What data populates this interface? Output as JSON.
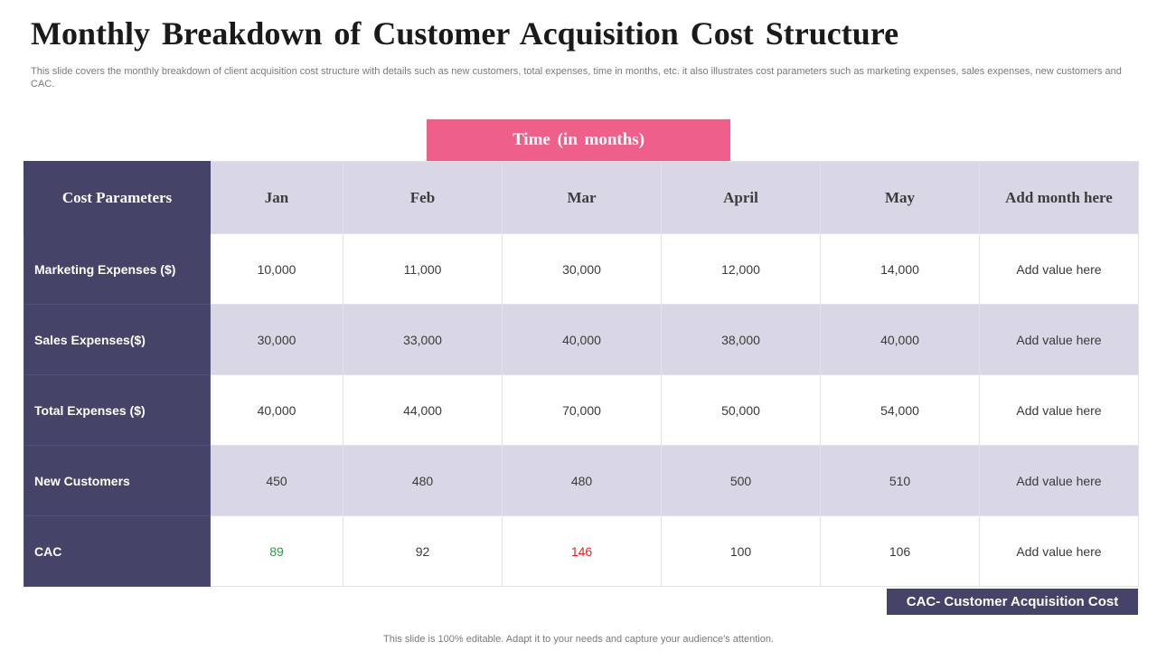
{
  "slide": {
    "title": "Monthly Breakdown  of Customer Acquisition Cost Structure",
    "subtitle": "This slide covers the monthly breakdown of client acquisition cost structure with details such as new customers, total expenses, time in months, etc. it also illustrates cost parameters such as marketing expenses, sales expenses, new customers and CAC.",
    "footer": "This slide is 100% editable. Adapt it to your needs and capture your audience's attention."
  },
  "banner": {
    "label": "Time  (in  months)"
  },
  "table": {
    "headers": [
      "Cost Parameters",
      "Jan",
      "Feb",
      "Mar",
      "April",
      "May",
      "Add month here"
    ],
    "rows": [
      {
        "label": "Marketing Expenses ($)",
        "values": [
          "10,000",
          "11,000",
          "30,000",
          "12,000",
          "14,000",
          "Add value here"
        ]
      },
      {
        "label": "Sales Expenses($)",
        "values": [
          "30,000",
          "33,000",
          "40,000",
          "38,000",
          "40,000",
          "Add value here"
        ]
      },
      {
        "label": "Total Expenses ($)",
        "values": [
          "40,000",
          "44,000",
          "70,000",
          "50,000",
          "54,000",
          "Add value here"
        ]
      },
      {
        "label": "New Customers",
        "values": [
          "450",
          "480",
          "480",
          "500",
          "510",
          "Add value here"
        ]
      },
      {
        "label": "CAC",
        "values": [
          "89",
          "92",
          "146",
          "100",
          "106",
          "Add value here"
        ]
      }
    ]
  },
  "legend": {
    "label": "CAC- Customer Acquisition Cost"
  },
  "colors": {
    "header_dark": "#454368",
    "header_light": "#d9d6e6",
    "banner_pink": "#ee5f89",
    "cac_low": "#2e9a48",
    "cac_high": "#e02424"
  }
}
